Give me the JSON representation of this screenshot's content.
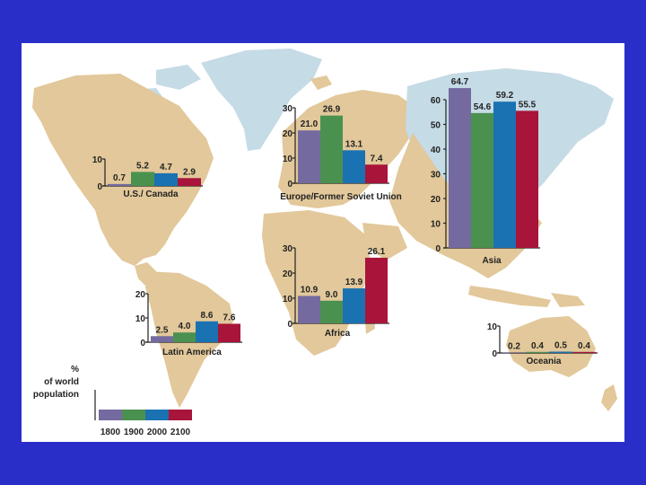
{
  "colors": {
    "slide_border": "#2a2ec8",
    "land": "#e2c89a",
    "ice": "#c5dbe6",
    "series": [
      "#756aa0",
      "#4a9150",
      "#1a72b2",
      "#a8143a"
    ]
  },
  "legend": {
    "line1": "%",
    "line2": "of world",
    "line3": "population",
    "years": [
      "1800",
      "1900",
      "2000",
      "2100"
    ]
  },
  "chart_data": [
    {
      "type": "bar",
      "title": "U.S./ Canada",
      "categories": [
        "1800",
        "1900",
        "2000",
        "2100"
      ],
      "values": [
        0.7,
        5.2,
        4.7,
        2.9
      ],
      "value_labels": [
        "0.7",
        "5.2",
        "4.7",
        "2.9"
      ],
      "yticks": [
        "0",
        "10"
      ],
      "ylim": [
        0,
        10
      ]
    },
    {
      "type": "bar",
      "title": "Europe/Former Soviet Union",
      "categories": [
        "1800",
        "1900",
        "2000",
        "2100"
      ],
      "values": [
        21.0,
        26.9,
        13.1,
        7.4
      ],
      "value_labels": [
        "21.0",
        "26.9",
        "13.1",
        "7.4"
      ],
      "yticks": [
        "0",
        "10",
        "20",
        "30"
      ],
      "ylim": [
        0,
        30
      ]
    },
    {
      "type": "bar",
      "title": "Asia",
      "categories": [
        "1800",
        "1900",
        "2000",
        "2100"
      ],
      "values": [
        64.7,
        54.6,
        59.2,
        55.5
      ],
      "value_labels": [
        "64.7",
        "54.6",
        "59.2",
        "55.5"
      ],
      "yticks": [
        "0",
        "10",
        "20",
        "30",
        "40",
        "50",
        "60"
      ],
      "ylim": [
        0,
        60
      ]
    },
    {
      "type": "bar",
      "title": "Africa",
      "categories": [
        "1800",
        "1900",
        "2000",
        "2100"
      ],
      "values": [
        10.9,
        9.0,
        13.9,
        26.1
      ],
      "value_labels": [
        "10.9",
        "9.0",
        "13.9",
        "26.1"
      ],
      "yticks": [
        "0",
        "10",
        "20",
        "30"
      ],
      "ylim": [
        0,
        30
      ]
    },
    {
      "type": "bar",
      "title": "Latin America",
      "categories": [
        "1800",
        "1900",
        "2000",
        "2100"
      ],
      "values": [
        2.5,
        4.0,
        8.6,
        7.6
      ],
      "value_labels": [
        "2.5",
        "4.0",
        "8.6",
        "7.6"
      ],
      "yticks": [
        "0",
        "10",
        "20"
      ],
      "ylim": [
        0,
        20
      ]
    },
    {
      "type": "bar",
      "title": "Oceania",
      "categories": [
        "1800",
        "1900",
        "2000",
        "2100"
      ],
      "values": [
        0.2,
        0.4,
        0.5,
        0.4
      ],
      "value_labels": [
        "0.2",
        "0.4",
        "0.5",
        "0.4"
      ],
      "yticks": [
        "0",
        "10"
      ],
      "ylim": [
        0,
        10
      ]
    }
  ]
}
